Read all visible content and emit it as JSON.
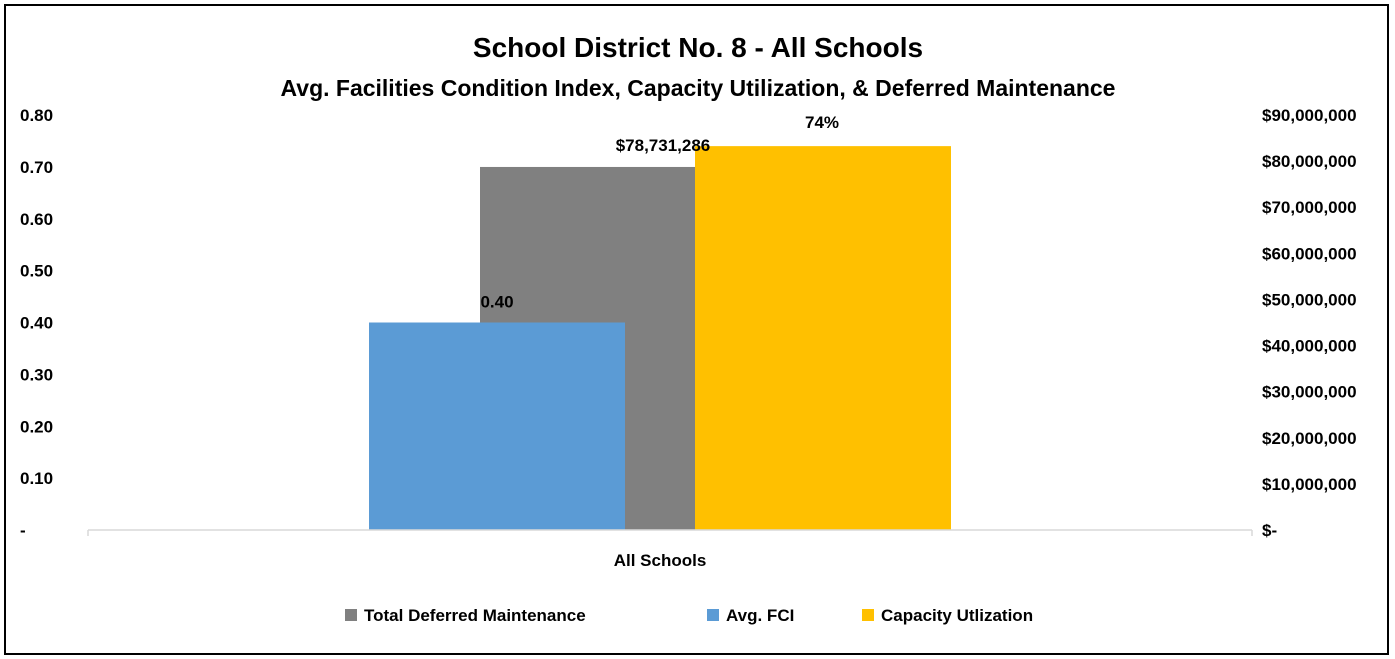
{
  "chart_data": {
    "type": "bar",
    "title": "School District No. 8 - All Schools",
    "subtitle": "Avg. Facilities Condition Index, Capacity Utilization, & Deferred Maintenance",
    "categories": [
      "All Schools"
    ],
    "series": [
      {
        "name": "Avg. FCI",
        "values": [
          0.4
        ],
        "label": "0.40",
        "axis": "left",
        "color": "#5B9BD5"
      },
      {
        "name": "Total Deferred Maintenance",
        "values": [
          78731286
        ],
        "label": "$78,731,286",
        "axis": "right",
        "color": "#808080"
      },
      {
        "name": "Capacity Utlization",
        "values": [
          0.74
        ],
        "label": "74%",
        "axis": "left",
        "color": "#FFC000"
      }
    ],
    "left_axis": {
      "ylim": [
        0,
        0.8
      ],
      "ticks": [
        0,
        0.1,
        0.2,
        0.3,
        0.4,
        0.5,
        0.6,
        0.7,
        0.8
      ],
      "tick_labels": [
        "-",
        "0.10",
        "0.20",
        "0.30",
        "0.40",
        "0.50",
        "0.60",
        "0.70",
        "0.80"
      ]
    },
    "right_axis": {
      "ylim": [
        0,
        90000000
      ],
      "ticks": [
        0,
        10000000,
        20000000,
        30000000,
        40000000,
        50000000,
        60000000,
        70000000,
        80000000,
        90000000
      ],
      "tick_labels": [
        "$-",
        "$10,000,000",
        "$20,000,000",
        "$30,000,000",
        "$40,000,000",
        "$50,000,000",
        "$60,000,000",
        "$70,000,000",
        "$80,000,000",
        "$90,000,000"
      ]
    },
    "legend": {
      "position": "bottom",
      "entries": [
        {
          "label": "Total Deferred Maintenance",
          "color": "#808080"
        },
        {
          "label": "Avg. FCI",
          "color": "#5B9BD5"
        },
        {
          "label": "Capacity Utlization",
          "color": "#FFC000"
        }
      ]
    },
    "grid": false
  }
}
